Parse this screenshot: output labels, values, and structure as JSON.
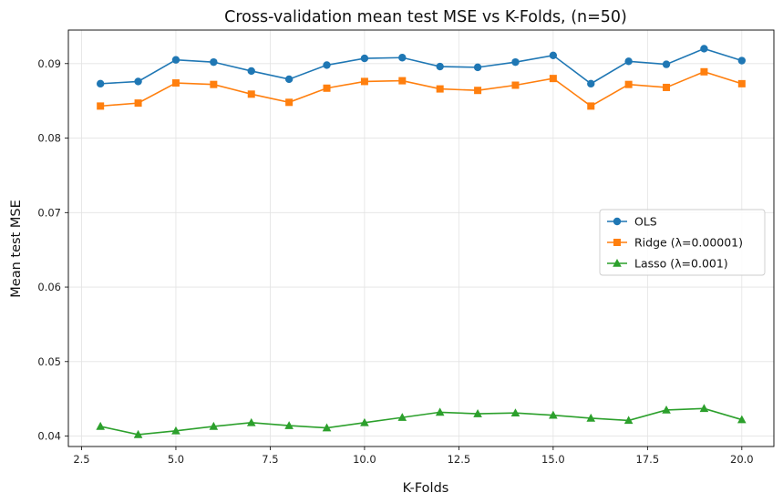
{
  "chart_data": {
    "type": "line",
    "title": "Cross-validation mean test MSE vs K-Folds, (n=50)",
    "xlabel": "K-Folds",
    "ylabel": "Mean test MSE",
    "xlim": [
      2.15,
      20.85
    ],
    "ylim": [
      0.0386,
      0.0945
    ],
    "x_ticks": [
      2.5,
      5.0,
      7.5,
      10.0,
      12.5,
      15.0,
      17.5,
      20.0
    ],
    "x_tick_labels": [
      "2.5",
      "5.0",
      "7.5",
      "10.0",
      "12.5",
      "15.0",
      "17.5",
      "20.0"
    ],
    "y_ticks": [
      0.04,
      0.05,
      0.06,
      0.07,
      0.08,
      0.09
    ],
    "y_tick_labels": [
      "0.04",
      "0.05",
      "0.06",
      "0.07",
      "0.08",
      "0.09"
    ],
    "grid": true,
    "legend_position": "center-right",
    "x": [
      3,
      4,
      5,
      6,
      7,
      8,
      9,
      10,
      11,
      12,
      13,
      14,
      15,
      16,
      17,
      18,
      19,
      20
    ],
    "series": [
      {
        "name": "OLS",
        "color": "#1f77b4",
        "marker": "circle",
        "values": [
          0.0873,
          0.0876,
          0.0905,
          0.0902,
          0.089,
          0.0879,
          0.0898,
          0.0907,
          0.0908,
          0.0896,
          0.0895,
          0.0902,
          0.0911,
          0.0873,
          0.0903,
          0.0899,
          0.092,
          0.0904
        ]
      },
      {
        "name": "Ridge (λ=0.00001)",
        "color": "#ff7f0e",
        "marker": "square",
        "values": [
          0.0843,
          0.0847,
          0.0874,
          0.0872,
          0.0859,
          0.0848,
          0.0867,
          0.0876,
          0.0877,
          0.0866,
          0.0864,
          0.0871,
          0.088,
          0.0843,
          0.0872,
          0.0868,
          0.0889,
          0.0873
        ]
      },
      {
        "name": "Lasso (λ=0.001)",
        "color": "#2ca02c",
        "marker": "triangle",
        "values": [
          0.0413,
          0.0402,
          0.0407,
          0.0413,
          0.0418,
          0.0414,
          0.0411,
          0.0418,
          0.0425,
          0.0432,
          0.043,
          0.0431,
          0.0428,
          0.0424,
          0.0421,
          0.0435,
          0.0437,
          0.0422
        ]
      }
    ]
  }
}
